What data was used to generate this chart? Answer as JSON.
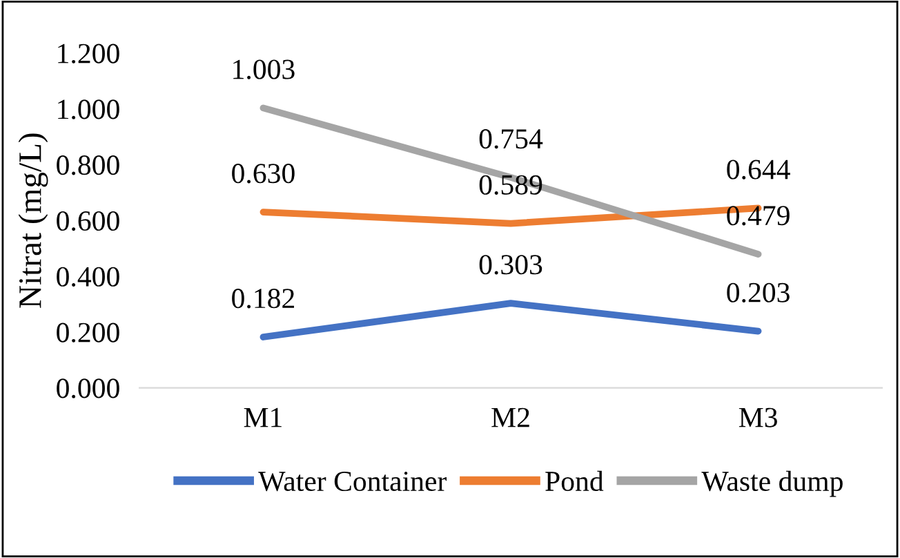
{
  "chart_data": {
    "type": "line",
    "ylabel": "Nitrat (mg/L)",
    "categories": [
      "M1",
      "M2",
      "M3"
    ],
    "series": [
      {
        "name": "Water Container",
        "color": "#4472c4",
        "values": [
          0.182,
          0.303,
          0.203
        ],
        "value_labels": [
          "0.182",
          "0.303",
          "0.203"
        ]
      },
      {
        "name": "Pond",
        "color": "#ed7d31",
        "values": [
          0.63,
          0.589,
          0.644
        ],
        "value_labels": [
          "0.630",
          "0.589",
          "0.644"
        ]
      },
      {
        "name": "Waste dump",
        "color": "#a5a5a5",
        "values": [
          1.003,
          0.754,
          0.479
        ],
        "value_labels": [
          "1.003",
          "0.754",
          "0.479"
        ]
      }
    ],
    "ylim": [
      0,
      1.2
    ],
    "yticks": [
      {
        "value": 0,
        "label": "0.000"
      },
      {
        "value": 0.2,
        "label": "0.200"
      },
      {
        "value": 0.4,
        "label": "0.400"
      },
      {
        "value": 0.6,
        "label": "0.600"
      },
      {
        "value": 0.8,
        "label": "0.800"
      },
      {
        "value": 1.0,
        "label": "1.000"
      },
      {
        "value": 1.2,
        "label": "1.200"
      }
    ],
    "grid": false,
    "legend": "bottom",
    "marker": "none",
    "line_style": "solid"
  }
}
